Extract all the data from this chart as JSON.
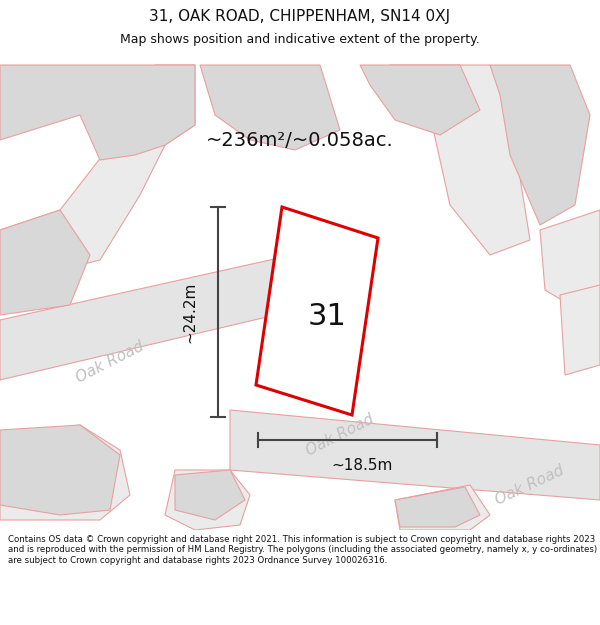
{
  "title": "31, OAK ROAD, CHIPPENHAM, SN14 0XJ",
  "subtitle": "Map shows position and indicative extent of the property.",
  "area_label": "~236m²/~0.058ac.",
  "height_label": "~24.2m",
  "width_label": "~18.5m",
  "number_label": "31",
  "footer": "Contains OS data © Crown copyright and database right 2021. This information is subject to Crown copyright and database rights 2023 and is reproduced with the permission of HM Land Registry. The polygons (including the associated geometry, namely x, y co-ordinates) are subject to Crown copyright and database rights 2023 Ordnance Survey 100026316.",
  "bg_white": "#ffffff",
  "map_bg": "#f0f0f0",
  "road_fill": "#e4e4e4",
  "road_edge": "#e8a0a0",
  "bld_fill": "#d8d8d8",
  "bld_edge": "#e8a0a0",
  "outline_fill": "#ebebeb",
  "prop_fill": "#ffffff",
  "prop_edge": "#dd0000",
  "dim_color": "#444444",
  "road_label_color": "#c0c0c0",
  "text_color": "#111111",
  "title_fontsize": 11,
  "subtitle_fontsize": 9,
  "area_fontsize": 14,
  "number_fontsize": 22,
  "dim_fontsize": 11,
  "road_fontsize": 11,
  "footer_fontsize": 6.2,
  "road_rotation": 27
}
